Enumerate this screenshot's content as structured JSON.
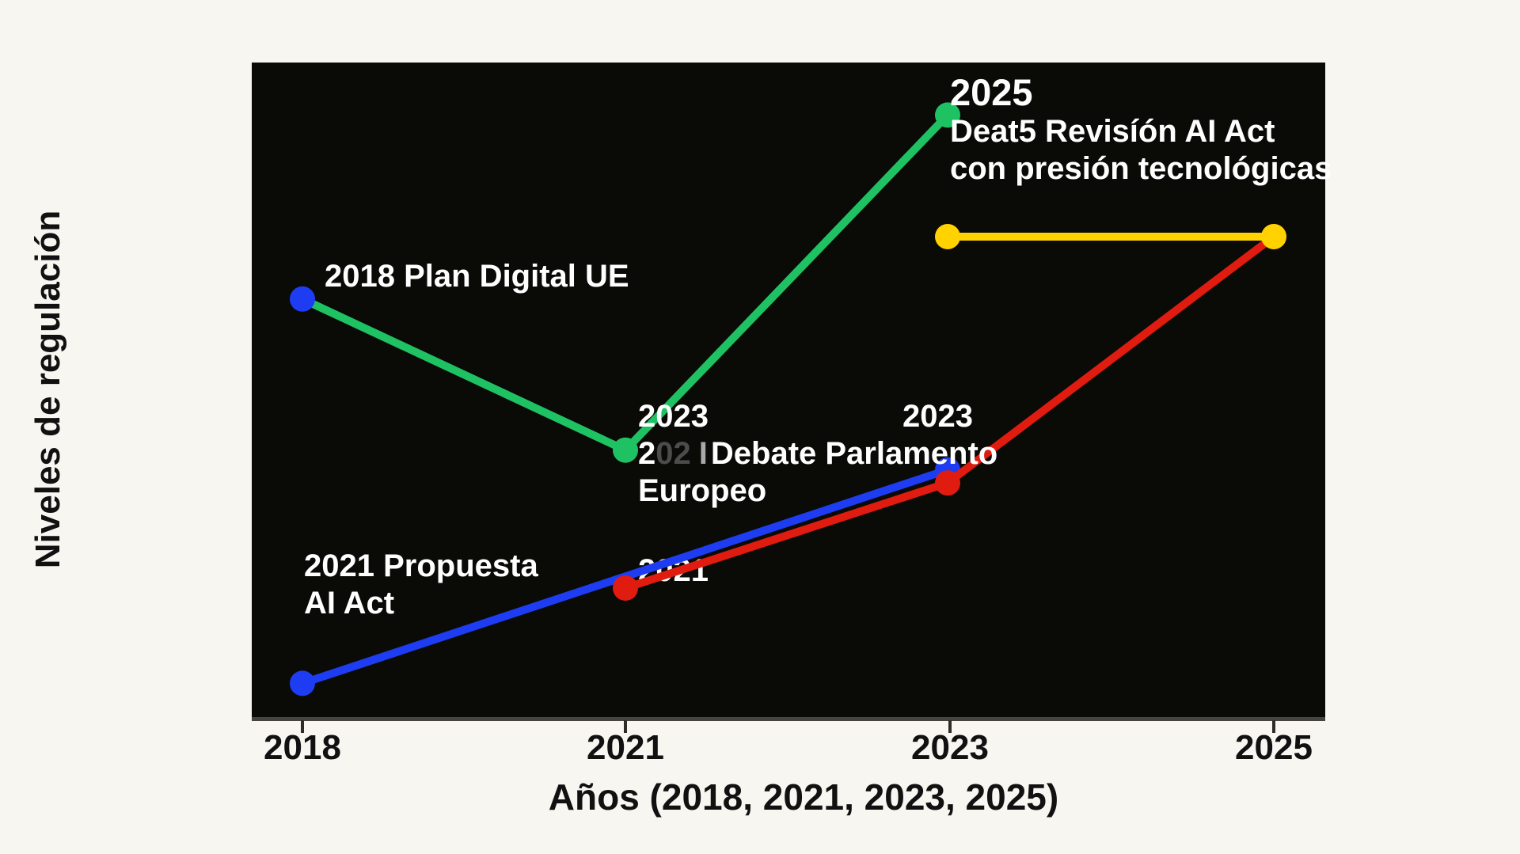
{
  "figure": {
    "background_color": "#f8f6f1",
    "plot_background_color": "#0a0a07",
    "axis_line_color": "#47443f",
    "y_axis_label": "Niveles de regulación",
    "x_axis_label": "Años (2018, 2021, 2023, 2025)",
    "x_ticks": [
      "2018",
      "2021",
      "2023",
      "2025"
    ]
  },
  "annotations": {
    "plan_2018": "2018 Plan Digital UE",
    "propuesta_2021_line1": "2021 Propuesta",
    "propuesta_2021_line2": "AI Act",
    "point_2021": "2021",
    "debate_2023_line1": "2023",
    "debate_2023_prefix_white": "2",
    "debate_2023_prefix_ghost": "02",
    "debate_2023_prefix_bar": "I",
    "debate_2023_line2": "Debate Parlamento",
    "debate_2023_line3": "Europeo",
    "point_2023": "2023",
    "revision_2025_line1": "2025",
    "revision_2025_line2": "Deat5 Revisíón AI Act",
    "revision_2025_line3": "con presión tecnológicas"
  },
  "chart_data": {
    "type": "line",
    "title": "",
    "xlabel": "Años (2018, 2021, 2023, 2025)",
    "ylabel": "Niveles de regulación",
    "x_categories": [
      "2018",
      "2021",
      "2023",
      "2025"
    ],
    "y_axis": {
      "ticks_visible": false,
      "implied_range": [
        0,
        10
      ]
    },
    "grid": false,
    "legend": false,
    "marker_radius": 16,
    "line_width": 10,
    "series": [
      {
        "name": "green-trajectory",
        "color": "#1fc263",
        "points": [
          {
            "x": "2018",
            "level": 6.4,
            "marker_color": "#1e3df2",
            "annotation": "2018 Plan Digital UE"
          },
          {
            "x": "2021",
            "level": 4.1,
            "annotation": "2023 / 202 Debate Parlamento Europeo"
          },
          {
            "x": "2023",
            "level": 9.2,
            "annotation": "2025 Deat5 Revisíón AI Act con presión tecnológicas"
          }
        ]
      },
      {
        "name": "blue-trajectory",
        "color": "#1e3df2",
        "points": [
          {
            "x": "2018",
            "level": 0.55,
            "annotation": "2021 Propuesta AI Act"
          },
          {
            "x": "2023",
            "level": 3.8,
            "annotation": "2023"
          }
        ]
      },
      {
        "name": "red-trajectory",
        "color": "#e01b10",
        "points": [
          {
            "x": "2021",
            "level": 2.0,
            "annotation": "2021"
          },
          {
            "x": "2023",
            "level": 3.6
          },
          {
            "x": "2025",
            "level": 7.35
          }
        ]
      },
      {
        "name": "yellow-plateau",
        "color": "#ffd200",
        "points": [
          {
            "x": "2023",
            "level": 7.35
          },
          {
            "x": "2025",
            "level": 7.35
          }
        ]
      }
    ]
  }
}
